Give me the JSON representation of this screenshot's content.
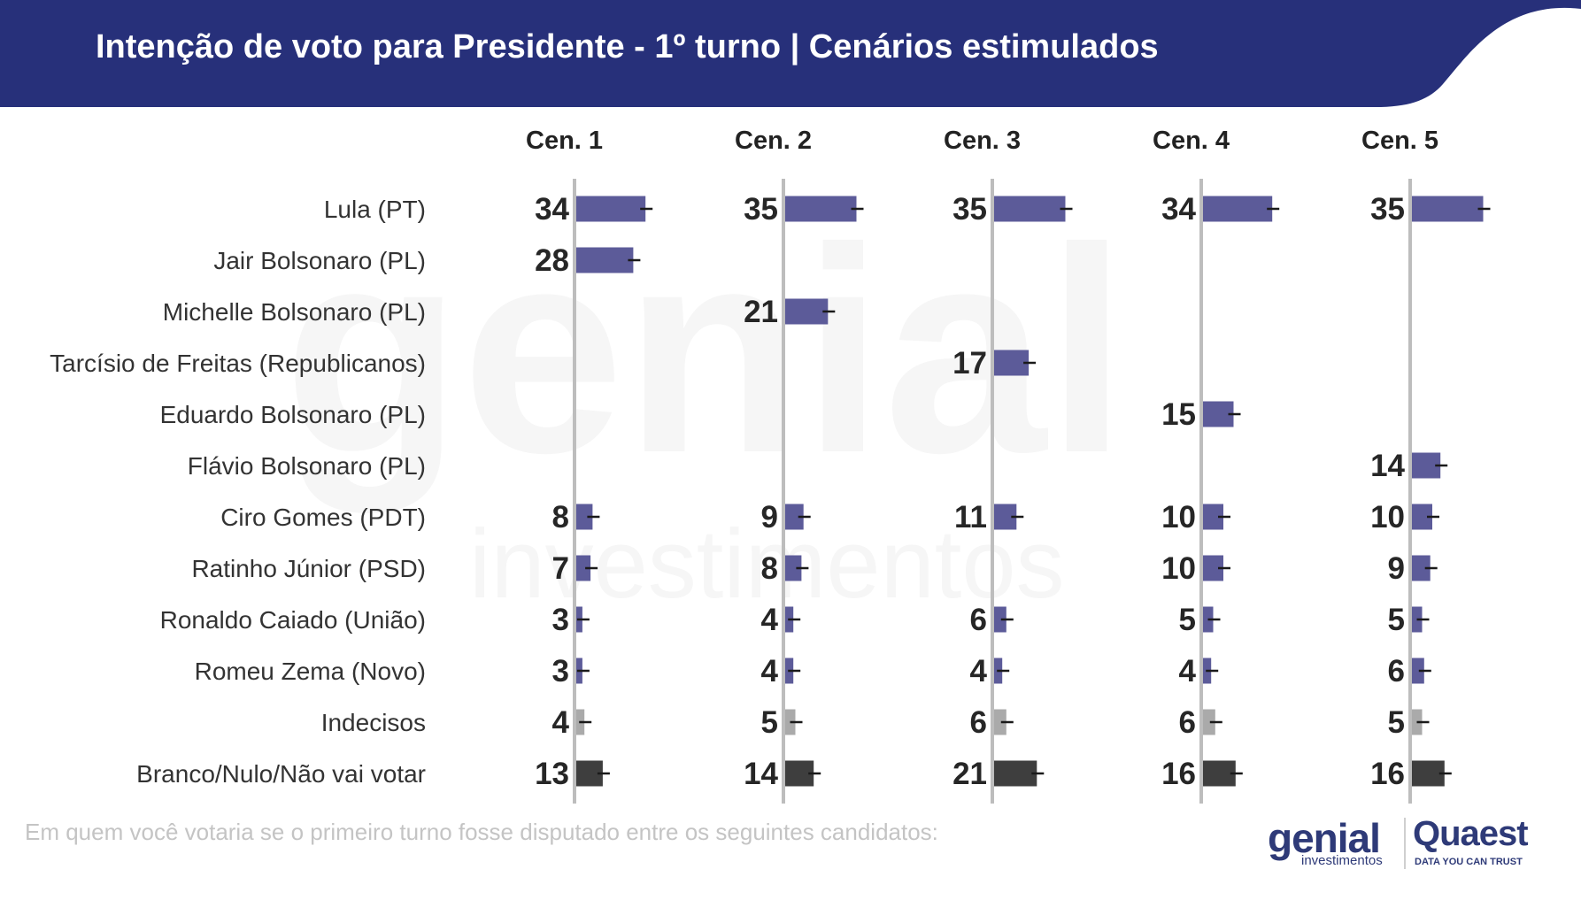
{
  "header": {
    "title": "Intenção de voto para Presidente - 1º turno | Cenários estimulados"
  },
  "footnote": "Em quem você votaria se o primeiro turno fosse disputado entre os seguintes candidatos:",
  "logos": {
    "genial_word": "genial",
    "genial_sub": "investimentos",
    "quaest_word": "Quaest",
    "quaest_tagline": "DATA YOU CAN TRUST"
  },
  "watermark": {
    "word": "genial",
    "sub": "investimentos"
  },
  "colors": {
    "header_bg": "#27307a",
    "candidate_bar": "#5c5b99",
    "undecided_bar": "#aaaaaa",
    "blank_bar": "#3e3e3e",
    "baseline": "#bdbdbd"
  },
  "chart_data": {
    "type": "bar",
    "orientation": "horizontal",
    "title": "Intenção de voto para Presidente - 1º turno | Cenários estimulados",
    "categories": [
      "Lula (PT)",
      "Jair Bolsonaro (PL)",
      "Michelle Bolsonaro (PL)",
      "Tarcísio de Freitas (Republicanos)",
      "Eduardo Bolsonaro (PL)",
      "Flávio Bolsonaro (PL)",
      "Ciro Gomes (PDT)",
      "Ratinho Júnior (PSD)",
      "Ronaldo Caiado (União)",
      "Romeu Zema (Novo)",
      "Indecisos",
      "Branco/Nulo/Não vai votar"
    ],
    "category_types": [
      "candidate",
      "candidate",
      "candidate",
      "candidate",
      "candidate",
      "candidate",
      "candidate",
      "candidate",
      "candidate",
      "candidate",
      "undecided",
      "blank"
    ],
    "series": [
      {
        "name": "Cen. 1",
        "values": [
          34,
          28,
          null,
          null,
          null,
          null,
          8,
          7,
          3,
          3,
          4,
          13
        ]
      },
      {
        "name": "Cen. 2",
        "values": [
          35,
          null,
          21,
          null,
          null,
          null,
          9,
          8,
          4,
          4,
          5,
          14
        ]
      },
      {
        "name": "Cen. 3",
        "values": [
          35,
          null,
          null,
          17,
          null,
          null,
          11,
          null,
          6,
          4,
          6,
          21
        ]
      },
      {
        "name": "Cen. 4",
        "values": [
          34,
          null,
          null,
          null,
          15,
          null,
          10,
          10,
          5,
          4,
          6,
          16
        ]
      },
      {
        "name": "Cen. 5",
        "values": [
          35,
          null,
          null,
          null,
          null,
          14,
          10,
          9,
          5,
          6,
          5,
          16
        ]
      }
    ],
    "error_bars": true,
    "grid": false,
    "legend": "none"
  }
}
